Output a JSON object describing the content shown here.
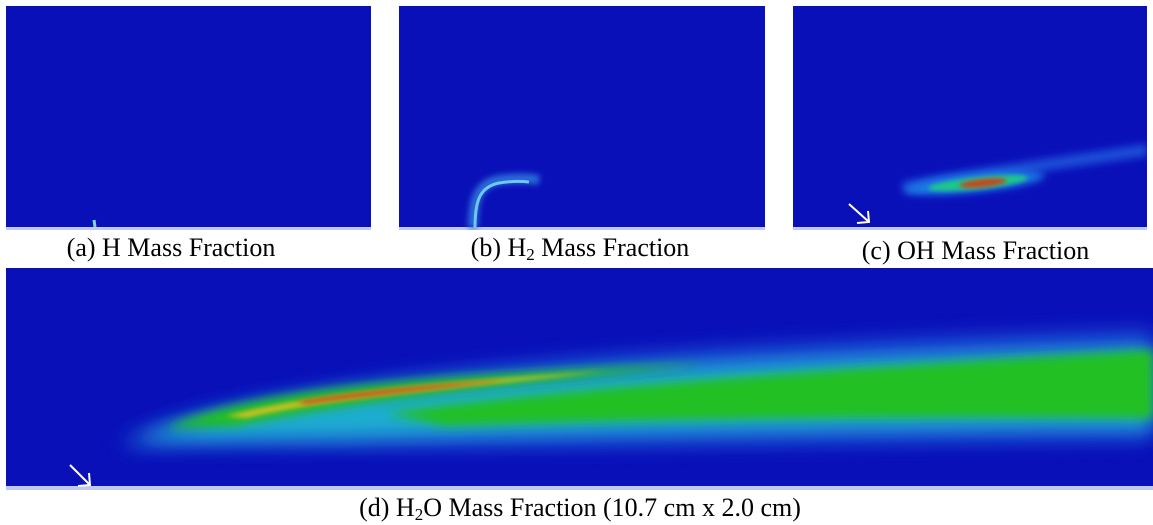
{
  "figure": {
    "panels": [
      {
        "id": "a",
        "caption_pre": "(a) H",
        "caption_sub": "",
        "caption_post": " Mass Fraction",
        "colors": {
          "background": "#0a10b8",
          "feature": "#7fd9c8"
        }
      },
      {
        "id": "b",
        "caption_pre": "(b) H",
        "caption_sub": "2",
        "caption_post": " Mass Fraction",
        "colors": {
          "background": "#0a10b8",
          "feature": "#6fc8f0"
        }
      },
      {
        "id": "c",
        "caption_pre": "(c) OH",
        "caption_sub": "",
        "caption_post": " Mass Fraction",
        "colors": {
          "background": "#0a10b8",
          "feature_core": "#c8441c",
          "feature_mid": "#1ec81e"
        }
      },
      {
        "id": "d",
        "caption_pre": "(d) H",
        "caption_sub": "2",
        "caption_post": "O Mass Fraction (10.7 cm x 2.0 cm)",
        "colors": {
          "background": "#0a10b8",
          "feature_core": "#c8441c",
          "feature_mid": "#20c020"
        }
      }
    ],
    "colormap": [
      "#0a10b8",
      "#1e6ee6",
      "#1ec8c8",
      "#20c020",
      "#d0c020",
      "#c8441c"
    ]
  }
}
